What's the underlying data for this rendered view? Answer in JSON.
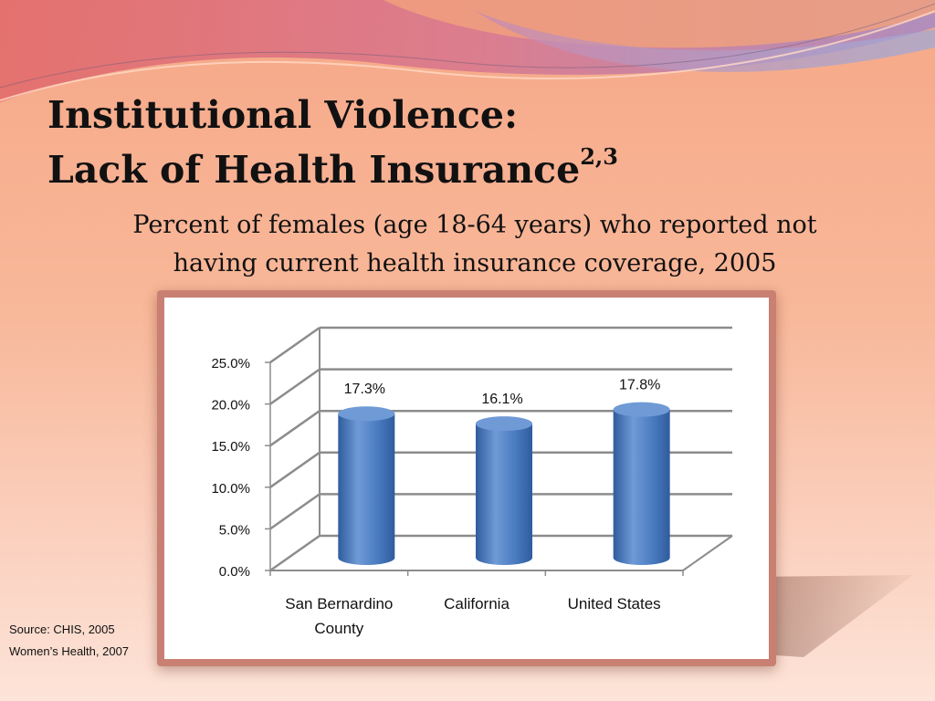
{
  "slide": {
    "title_line1": "Institutional Violence:",
    "title_line2": "Lack of Health Insurance",
    "title_superscript": "2,3",
    "subtitle": "Percent of females (age 18-64 years) who reported not having current health insurance coverage, 2005",
    "source_line1": "Source: CHIS,  2005",
    "source_line2": "Women’s Health, 2007"
  },
  "colors": {
    "bar": "#4a7bc0",
    "bar_dark": "#2f5c9e",
    "bar_light": "#6f9ad6",
    "grid": "#8c8c8c"
  },
  "chart_data": {
    "type": "bar",
    "categories": [
      "San Bernardino County",
      "California",
      "United States"
    ],
    "category_lines": [
      [
        "San Bernardino",
        "County"
      ],
      [
        "California"
      ],
      [
        "United States"
      ]
    ],
    "values": [
      17.3,
      16.1,
      17.8
    ],
    "data_labels": [
      "17.3%",
      "16.1%",
      "17.8%"
    ],
    "ylim": [
      0,
      25
    ],
    "yticks": [
      0,
      5,
      10,
      15,
      20,
      25
    ],
    "ytick_labels": [
      "0.0%",
      "5.0%",
      "10.0%",
      "15.0%",
      "20.0%",
      "25.0%"
    ],
    "grid": true,
    "style": "3d-cylinder",
    "legend": "none"
  }
}
